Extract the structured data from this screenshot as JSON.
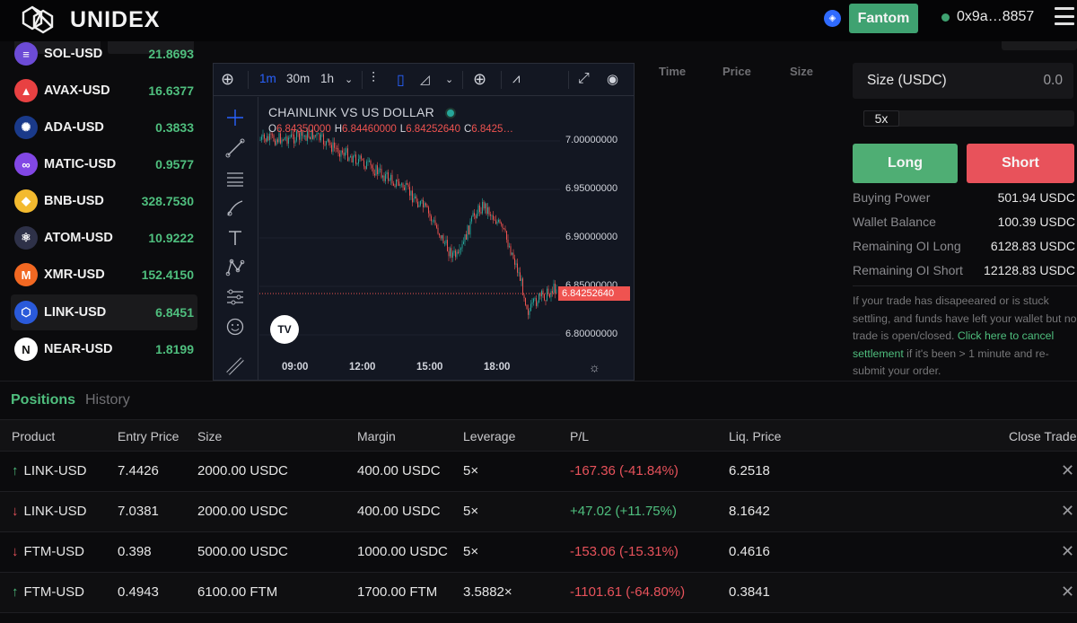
{
  "header": {
    "brand": "UNIDEX",
    "network_label": "Fantom",
    "wallet_address": "0x9a…8857"
  },
  "sidebar": {
    "markets": [
      {
        "symbol": "SOL-USD",
        "price": "21.8693",
        "icon_color": "#6c4bd6",
        "icon": "sol-icon"
      },
      {
        "symbol": "AVAX-USD",
        "price": "16.6377",
        "icon_color": "#e84142",
        "icon": "avax-icon"
      },
      {
        "symbol": "ADA-USD",
        "price": "0.3833",
        "icon_color": "#1a3a8a",
        "icon": "ada-icon"
      },
      {
        "symbol": "MATIC-USD",
        "price": "0.9577",
        "icon_color": "#8247e5",
        "icon": "matic-icon"
      },
      {
        "symbol": "BNB-USD",
        "price": "328.7530",
        "icon_color": "#f3ba2f",
        "icon": "bnb-icon"
      },
      {
        "symbol": "ATOM-USD",
        "price": "10.9222",
        "icon_color": "#2e3148",
        "icon": "atom-icon"
      },
      {
        "symbol": "XMR-USD",
        "price": "152.4150",
        "icon_color": "#f26822",
        "icon": "xmr-icon"
      },
      {
        "symbol": "LINK-USD",
        "price": "6.8451",
        "icon_color": "#2a5ada",
        "icon": "link-icon"
      },
      {
        "symbol": "NEAR-USD",
        "price": "1.8199",
        "icon_color": "#ffffff",
        "icon": "near-icon"
      }
    ]
  },
  "chart": {
    "toolbar": {
      "tf_1m": "1m",
      "tf_30m": "30m",
      "tf_1h": "1h"
    },
    "title": "CHAINLINK VS US DOLLAR",
    "ohlc": {
      "o_label": "O",
      "o": "6.84350000",
      "h_label": "H",
      "h": "6.84460000",
      "l_label": "L",
      "l": "6.84252640",
      "c_label": "C",
      "c": "6.8425…"
    },
    "price_tag": "6.84252640",
    "y_labels": [
      "7.00000000",
      "6.95000000",
      "6.90000000",
      "6.85000000",
      "6.80000000"
    ],
    "x_labels": [
      "09:00",
      "12:00",
      "15:00",
      "18:00"
    ],
    "tv_logo": "TV",
    "colors": {
      "up": "#26a69a",
      "down": "#ef5350",
      "bg": "#131722"
    }
  },
  "trades": {
    "headers": [
      "Time",
      "Price",
      "Size"
    ]
  },
  "order": {
    "size_label": "Size (USDC)",
    "size_value": "0.0",
    "leverage": "5x",
    "long_label": "Long",
    "short_label": "Short",
    "info": [
      {
        "label": "Buying Power",
        "value": "501.94 USDC"
      },
      {
        "label": "Wallet Balance",
        "value": "100.39 USDC"
      },
      {
        "label": "Remaining OI Long",
        "value": "6128.83 USDC"
      },
      {
        "label": "Remaining OI Short",
        "value": "12128.83 USDC"
      }
    ],
    "notice_pre": "If your trade has disapeeared or is stuck settling, and funds have left your wallet but no trade is open/closed.",
    "notice_link": "Click here to cancel settlement",
    "notice_post": "if it's been > 1 minute and re-submit your order."
  },
  "positions": {
    "tabs": {
      "positions": "Positions",
      "history": "History"
    },
    "headers": {
      "product": "Product",
      "entry": "Entry Price",
      "size": "Size",
      "margin": "Margin",
      "leverage": "Leverage",
      "pl": "P/L",
      "liq": "Liq. Price",
      "close": "Close Trade"
    },
    "rows": [
      {
        "dir": "up",
        "arrow": "↑",
        "product": "LINK-USD",
        "entry": "7.4426",
        "size": "2000.00 USDC",
        "margin": "400.00 USDC",
        "leverage": "5×",
        "pl": "-167.36 (-41.84%)",
        "pl_sign": "neg",
        "liq": "6.2518",
        "close": "✕"
      },
      {
        "dir": "down",
        "arrow": "↓",
        "product": "LINK-USD",
        "entry": "7.0381",
        "size": "2000.00 USDC",
        "margin": "400.00 USDC",
        "leverage": "5×",
        "pl": "+47.02 (+11.75%)",
        "pl_sign": "pos",
        "liq": "8.1642",
        "close": "✕"
      },
      {
        "dir": "down",
        "arrow": "↓",
        "product": "FTM-USD",
        "entry": "0.398",
        "size": "5000.00 USDC",
        "margin": "1000.00 USDC",
        "leverage": "5×",
        "pl": "-153.06 (-15.31%)",
        "pl_sign": "neg",
        "liq": "0.4616",
        "close": "✕"
      },
      {
        "dir": "up",
        "arrow": "↑",
        "product": "FTM-USD",
        "entry": "0.4943",
        "size": "6100.00 FTM",
        "margin": "1700.00 FTM",
        "leverage": "3.5882×",
        "pl": "-1101.61 (-64.80%)",
        "pl_sign": "neg",
        "liq": "0.3841",
        "close": "✕"
      }
    ]
  }
}
